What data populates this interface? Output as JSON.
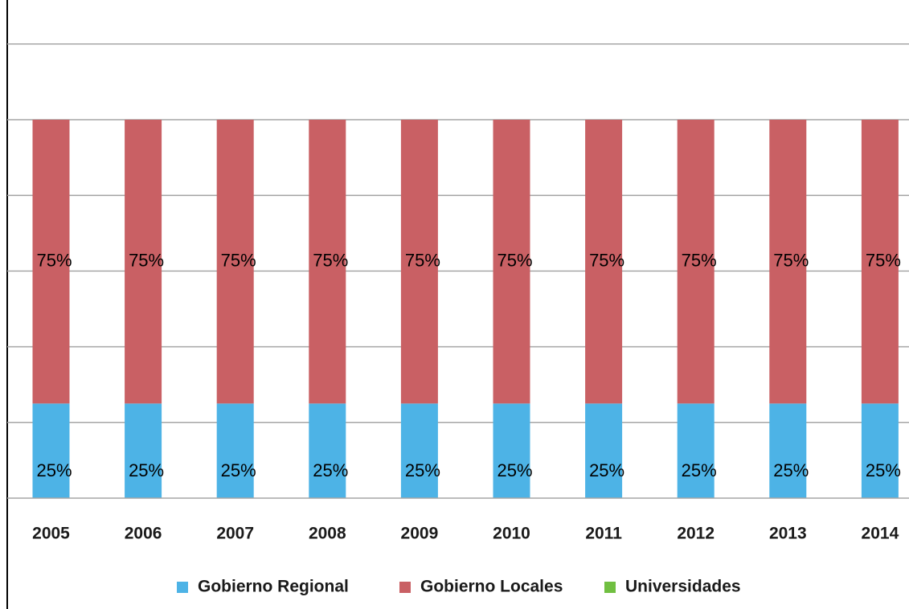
{
  "chart_data": {
    "type": "bar",
    "stacked": true,
    "categories": [
      "2005",
      "2006",
      "2007",
      "2008",
      "2009",
      "2010",
      "2011",
      "2012",
      "2013",
      "2014"
    ],
    "series": [
      {
        "name": "Gobierno Regional",
        "values": [
          25,
          25,
          25,
          25,
          25,
          25,
          25,
          25,
          25,
          25
        ],
        "color": "#4db3e6",
        "labels": [
          "25%",
          "25%",
          "25%",
          "25%",
          "25%",
          "25%",
          "25%",
          "25%",
          "25%",
          "25%"
        ]
      },
      {
        "name": "Gobierno Locales",
        "values": [
          75,
          75,
          75,
          75,
          75,
          75,
          75,
          75,
          75,
          75
        ],
        "color": "#c96064",
        "labels": [
          "75%",
          "75%",
          "75%",
          "75%",
          "75%",
          "75%",
          "75%",
          "75%",
          "75%",
          "75%"
        ]
      },
      {
        "name": "Universidades",
        "values": [
          0,
          0,
          0,
          0,
          0,
          0,
          0,
          0,
          0,
          0
        ],
        "color": "#70bf41",
        "labels": []
      }
    ],
    "ylim": [
      0,
      130
    ],
    "yaxis_labels_shown": false,
    "grid": true,
    "grid_color": "#a6a6a6",
    "legend": "bottom",
    "title": "",
    "xlabel": "",
    "ylabel": ""
  }
}
